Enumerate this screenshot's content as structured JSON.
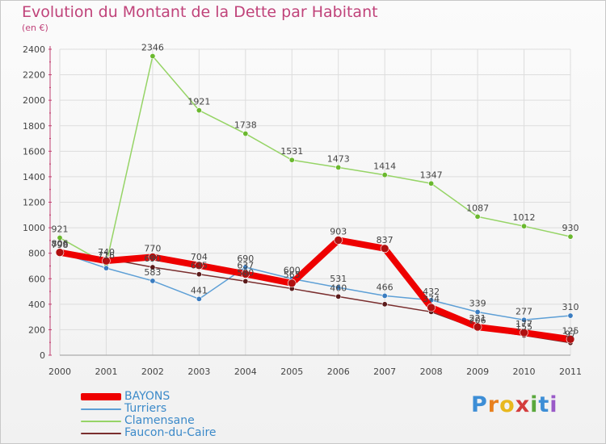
{
  "title": "Evolution du Montant de la Dette par Habitant",
  "unit_label": "(en €)",
  "logo_text": "Proxiti",
  "colors": {
    "title": "#c0437a",
    "grid": "#dddddd",
    "legend_text": "#3c8ac9"
  },
  "chart_data": {
    "type": "line",
    "title": "Evolution du Montant de la Dette par Habitant",
    "ylabel": "(en €)",
    "xlabel": "",
    "x": [
      "2000",
      "2001",
      "2002",
      "2003",
      "2004",
      "2005",
      "2006",
      "2007",
      "2008",
      "2009",
      "2010",
      "2011"
    ],
    "ylim": [
      0,
      2400
    ],
    "yticks": [
      0,
      200,
      400,
      600,
      800,
      1000,
      1200,
      1400,
      1600,
      1800,
      2000,
      2200,
      2400
    ],
    "grid": true,
    "legend_position": "bottom-left",
    "series": [
      {
        "name": "BAYONS",
        "color": "#ee0000",
        "point_color": "#b01010",
        "width": 8,
        "values": [
          806,
          740,
          770,
          704,
          637,
          565,
          903,
          837,
          374,
          221,
          177,
          125
        ],
        "labels": [
          "806",
          "740",
          "770",
          "704",
          "637",
          "565",
          "903",
          "837",
          "374",
          "221",
          "177",
          "125"
        ]
      },
      {
        "name": "Turriers",
        "color": "#5d9fd6",
        "point_color": "#3a7cc0",
        "width": 1.5,
        "values": [
          806,
          683,
          583,
          441,
          690,
          600,
          531,
          466,
          432,
          339,
          277,
          310
        ],
        "labels": [
          "806",
          "",
          "583",
          "441",
          "690",
          "600",
          "531",
          "466",
          "432",
          "339",
          "277",
          "310"
        ]
      },
      {
        "name": "Clamensane",
        "color": "#96d466",
        "point_color": "#6ab82e",
        "width": 1.5,
        "values": [
          921,
          716,
          2346,
          1921,
          1738,
          1531,
          1473,
          1414,
          1347,
          1087,
          1012,
          930
        ],
        "labels": [
          "921",
          "716",
          "2346",
          "1921",
          "1738",
          "1531",
          "1473",
          "1414",
          "1347",
          "1087",
          "1012",
          "930"
        ]
      },
      {
        "name": "Faucon-du-Caire",
        "color": "#7a2e2e",
        "point_color": "#5a1a1a",
        "width": 1.5,
        "values": [
          798,
          758,
          690,
          635,
          580,
          522,
          460,
          400,
          340,
          206,
          155,
          97
        ],
        "labels": [
          "798",
          "",
          "690",
          "635",
          "580",
          "",
          "460",
          "",
          "",
          "206",
          "155",
          "97"
        ]
      }
    ]
  }
}
